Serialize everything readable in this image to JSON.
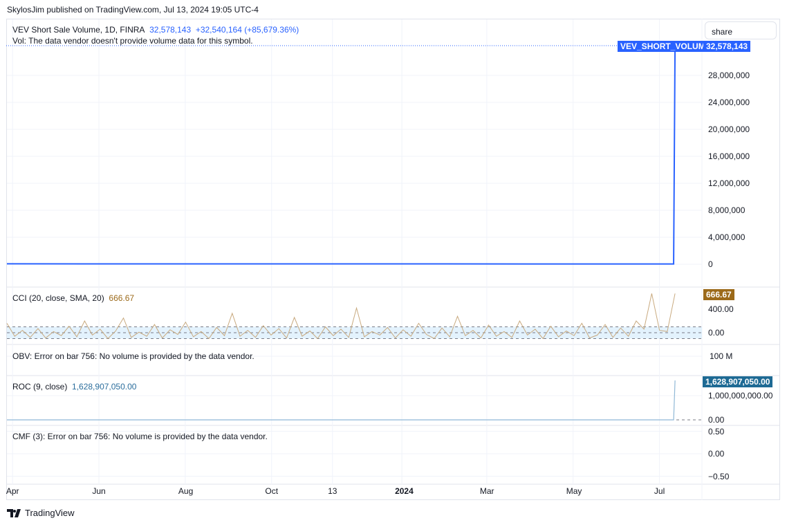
{
  "header": {
    "publisher": "SkylosJim published on TradingView.com, Jul 13, 2024 19:05 UTC-4"
  },
  "share_button": "share",
  "footer": {
    "brand": "TradingView"
  },
  "colors": {
    "main": "#2962ff",
    "cci": "#c8a97e",
    "cci_badge": "#9c6a1a",
    "roc": "#2a6d9c",
    "roc_line": "#8fb8d6",
    "band": "#e3f2fd"
  },
  "chart_data": [
    {
      "type": "line",
      "pane": "main",
      "legend": {
        "title": "VEV Short Sale Volume, 1D, FINRA",
        "value": "32,578,143",
        "change": "+32,540,164 (+85,679.36%)",
        "vol_msg": "Vol: The data vendor doesn't provide volume data for this symbol."
      },
      "label": "VEV_SHORT_VOLUME",
      "last_value_label": "32,578,143",
      "ylim": [
        -1000000,
        34000000
      ],
      "yticks": [
        "0",
        "4,000,000",
        "8,000,000",
        "12,000,000",
        "16,000,000",
        "20,000,000",
        "24,000,000",
        "28,000,000"
      ],
      "ytick_values": [
        0,
        4000000,
        8000000,
        12000000,
        16000000,
        20000000,
        24000000,
        28000000
      ],
      "x": [
        "2023-03-28",
        "2024-07-11",
        "2024-07-12"
      ],
      "values": [
        60000,
        37979,
        32578143
      ]
    },
    {
      "type": "line",
      "pane": "cci",
      "legend": {
        "title": "CCI (20, close, SMA, 20)",
        "value": "666.67"
      },
      "last_value_label": "666.67",
      "yticks": [
        "400.00",
        "0.00"
      ],
      "ytick_values": [
        400,
        0
      ],
      "band": [
        -100,
        100
      ],
      "values": [
        160,
        -60,
        40,
        -80,
        70,
        -90,
        20,
        -50,
        110,
        -70,
        200,
        -40,
        60,
        -100,
        30,
        250,
        -80,
        10,
        -60,
        140,
        -90,
        50,
        -30,
        180,
        -70,
        20,
        -100,
        90,
        -50,
        330,
        -60,
        40,
        -80,
        120,
        -40,
        70,
        -90,
        260,
        -60,
        30,
        -100,
        100,
        -50,
        60,
        -80,
        420,
        -70,
        20,
        -40,
        90,
        -90,
        50,
        -60,
        160,
        -30,
        -100,
        80,
        -70,
        280,
        -50,
        40,
        -90,
        130,
        -60,
        20,
        -80,
        200,
        -40,
        60,
        -100,
        110,
        -70,
        30,
        -50,
        160,
        -90,
        -40,
        140,
        -80,
        80,
        -60,
        200,
        60,
        666.67,
        40,
        20,
        666.67
      ]
    },
    {
      "type": "line",
      "pane": "obv",
      "legend": {
        "title": "OBV: Error on bar 756: No volume is provided by the data vendor."
      },
      "yticks": [
        "100 M"
      ]
    },
    {
      "type": "line",
      "pane": "roc",
      "legend": {
        "title": "ROC (9, close)",
        "value": "1,628,907,050.00"
      },
      "last_value_label": "1,628,907,050.00",
      "yticks": [
        "1,000,000,000.00",
        "0.00"
      ],
      "ytick_values": [
        1000000000,
        0
      ],
      "x": [
        "2023-03-28",
        "2024-07-11",
        "2024-07-12"
      ],
      "values": [
        0,
        0,
        1628907050
      ]
    },
    {
      "type": "line",
      "pane": "cmf",
      "legend": {
        "title": "CMF (3): Error on bar 756: No volume is provided by the data vendor."
      },
      "yticks": [
        "0.50",
        "0.00",
        "−0.50"
      ],
      "ytick_values": [
        0.5,
        0,
        -0.5
      ]
    }
  ],
  "xaxis": {
    "range": [
      "2023-03-28",
      "2024-07-31"
    ],
    "ticks": [
      {
        "label": "Apr",
        "date": "2023-04-01"
      },
      {
        "label": "Jun",
        "date": "2023-06-01"
      },
      {
        "label": "Aug",
        "date": "2023-08-01"
      },
      {
        "label": "Oct",
        "date": "2023-10-01"
      },
      {
        "label": "13",
        "date": "2023-11-13"
      },
      {
        "label": "2024",
        "date": "2024-01-01",
        "bold": true
      },
      {
        "label": "Mar",
        "date": "2024-03-01"
      },
      {
        "label": "May",
        "date": "2024-05-01"
      },
      {
        "label": "Jul",
        "date": "2024-07-01"
      }
    ]
  }
}
